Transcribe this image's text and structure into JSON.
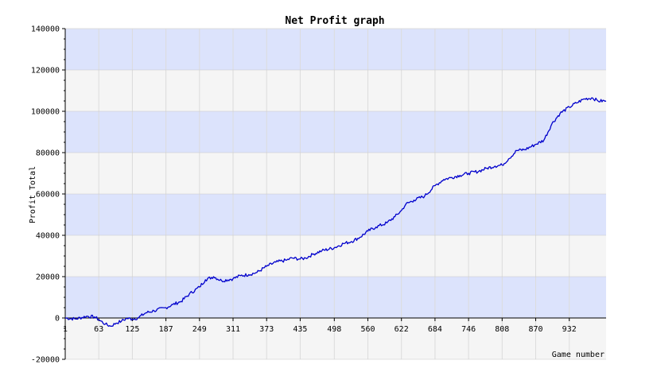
{
  "chart_data": {
    "type": "line",
    "title": "Net Profit graph",
    "xlabel": "Game number",
    "ylabel": "Profit Total",
    "xlim": [
      1,
      1000
    ],
    "ylim": [
      -20000,
      140000
    ],
    "x_ticks": [
      "1",
      "63",
      "125",
      "187",
      "249",
      "311",
      "373",
      "435",
      "498",
      "560",
      "622",
      "684",
      "746",
      "808",
      "870",
      "932"
    ],
    "y_ticks": [
      "140000",
      "120000",
      "100000",
      "80000",
      "60000",
      "40000",
      "20000",
      "0",
      "-20000"
    ],
    "grid": true,
    "band_colors": [
      "#dce3fc",
      "#f5f5f5"
    ],
    "line_color": "#0000cc",
    "series": [
      {
        "values": [
          [
            1,
            0
          ],
          [
            20,
            -500
          ],
          [
            40,
            800
          ],
          [
            55,
            500
          ],
          [
            63,
            -800
          ],
          [
            75,
            -3000
          ],
          [
            85,
            -4000
          ],
          [
            95,
            -2500
          ],
          [
            105,
            -1500
          ],
          [
            115,
            -200
          ],
          [
            125,
            -500
          ],
          [
            135,
            0
          ],
          [
            150,
            2500
          ],
          [
            165,
            3500
          ],
          [
            187,
            5000
          ],
          [
            200,
            6500
          ],
          [
            215,
            8000
          ],
          [
            230,
            11500
          ],
          [
            249,
            15000
          ],
          [
            260,
            18500
          ],
          [
            275,
            20000
          ],
          [
            290,
            18000
          ],
          [
            311,
            19000
          ],
          [
            325,
            20500
          ],
          [
            340,
            21000
          ],
          [
            355,
            22000
          ],
          [
            373,
            25000
          ],
          [
            390,
            27000
          ],
          [
            410,
            28000
          ],
          [
            420,
            29000
          ],
          [
            435,
            28500
          ],
          [
            445,
            29000
          ],
          [
            460,
            31000
          ],
          [
            475,
            32500
          ],
          [
            498,
            34000
          ],
          [
            515,
            36000
          ],
          [
            530,
            37000
          ],
          [
            545,
            39000
          ],
          [
            560,
            42000
          ],
          [
            575,
            44000
          ],
          [
            595,
            46000
          ],
          [
            610,
            49000
          ],
          [
            622,
            52000
          ],
          [
            630,
            55000
          ],
          [
            645,
            57000
          ],
          [
            665,
            59000
          ],
          [
            684,
            64000
          ],
          [
            700,
            67000
          ],
          [
            715,
            68000
          ],
          [
            730,
            69000
          ],
          [
            746,
            70000
          ],
          [
            765,
            71000
          ],
          [
            780,
            72500
          ],
          [
            795,
            73500
          ],
          [
            808,
            74000
          ],
          [
            820,
            77000
          ],
          [
            835,
            81000
          ],
          [
            850,
            81500
          ],
          [
            870,
            84000
          ],
          [
            885,
            86000
          ],
          [
            900,
            94000
          ],
          [
            915,
            99000
          ],
          [
            932,
            102000
          ],
          [
            945,
            104000
          ],
          [
            960,
            106000
          ],
          [
            975,
            106500
          ],
          [
            985,
            105000
          ],
          [
            1000,
            105000
          ]
        ]
      }
    ]
  }
}
